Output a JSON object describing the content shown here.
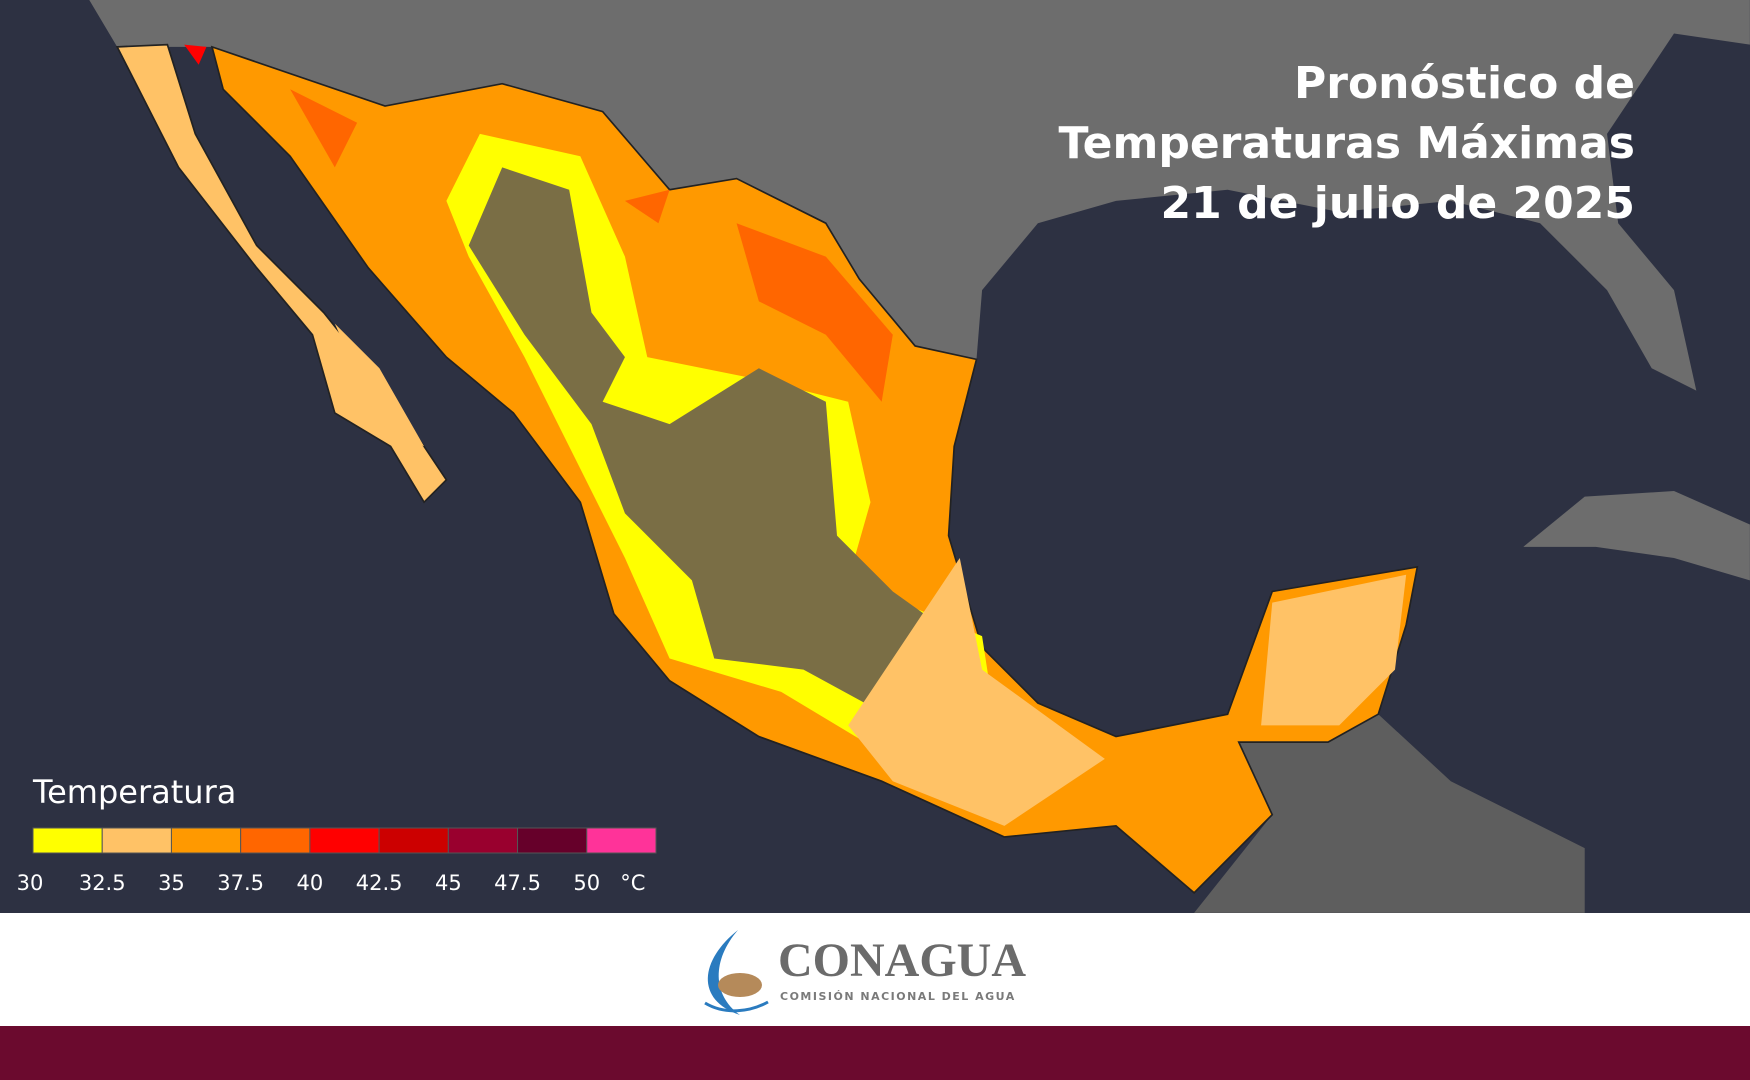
{
  "title": [
    "Pronóstico de",
    "Temperaturas Máximas",
    "21 de julio de 2025"
  ],
  "legend": {
    "title": "Temperatura",
    "colors": [
      "#ffff00",
      "#ffc266",
      "#ff9900",
      "#ff6600",
      "#ff0000",
      "#cc0000",
      "#99002e",
      "#66002a",
      "#ff3399"
    ],
    "ticks": [
      30,
      32.5,
      35,
      37.5,
      40,
      42.5,
      45,
      47.5,
      50
    ],
    "unit": "°C"
  },
  "logo": {
    "name": "CONAGUA",
    "subtitle": "COMISIÓN NACIONAL DEL AGUA"
  }
}
